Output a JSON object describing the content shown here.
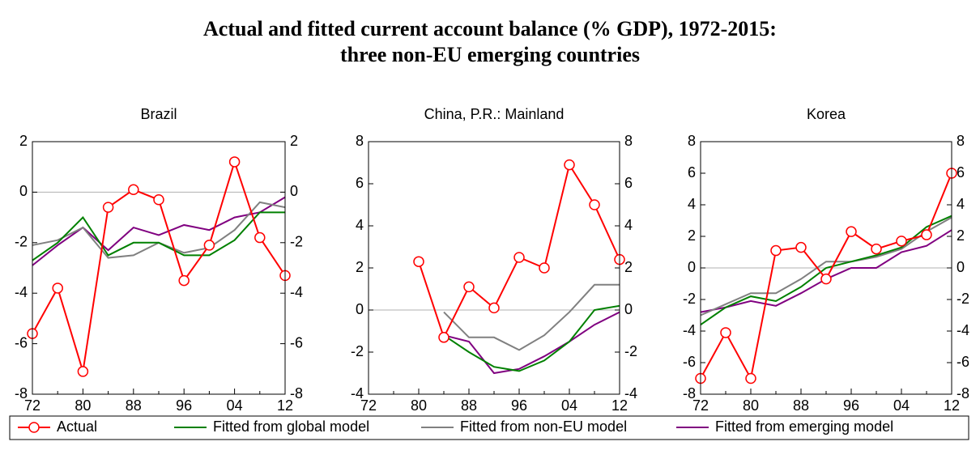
{
  "title": [
    "Actual and fitted current account balance (% GDP), 1972-2015:",
    "three non-EU emerging countries"
  ],
  "chart_data": [
    {
      "type": "line",
      "title": "Brazil",
      "categories": [
        "72",
        null,
        "80",
        null,
        "88",
        null,
        "96",
        null,
        "04",
        null,
        "12"
      ],
      "ylim": [
        -8,
        2
      ],
      "yticks": [
        -8,
        -6,
        -4,
        -2,
        0,
        2
      ],
      "right_axis": true,
      "series": [
        {
          "name": "Actual",
          "color": "#ff0000",
          "marker": "open-circle",
          "values": [
            -5.6,
            -3.8,
            -7.1,
            -0.6,
            0.1,
            -0.3,
            -3.5,
            -2.1,
            1.2,
            -1.8,
            -3.3
          ]
        },
        {
          "name": "Fitted from global model",
          "color": "#008000",
          "values": [
            -2.7,
            -2.0,
            -1.0,
            -2.5,
            -2.0,
            -2.0,
            -2.5,
            -2.5,
            -1.9,
            -0.8,
            -0.8
          ]
        },
        {
          "name": "Fitted from non-EU model",
          "color": "#808080",
          "values": [
            -2.1,
            -1.9,
            -1.4,
            -2.6,
            -2.5,
            -2.0,
            -2.4,
            -2.2,
            -1.5,
            -0.4,
            -0.6
          ]
        },
        {
          "name": "Fitted from emerging model",
          "color": "#800080",
          "values": [
            -2.9,
            -2.1,
            -1.4,
            -2.3,
            -1.4,
            -1.7,
            -1.3,
            -1.5,
            -1.0,
            -0.8,
            -0.2
          ]
        }
      ]
    },
    {
      "type": "line",
      "title": "China, P.R.: Mainland",
      "categories": [
        "72",
        null,
        "80",
        null,
        "88",
        null,
        "96",
        null,
        "04",
        null,
        "12"
      ],
      "ylim": [
        -4,
        8
      ],
      "yticks": [
        -4,
        -2,
        0,
        2,
        4,
        6,
        8
      ],
      "right_axis": true,
      "series": [
        {
          "name": "Actual",
          "color": "#ff0000",
          "marker": "open-circle",
          "values": [
            null,
            null,
            2.3,
            -1.3,
            1.1,
            0.1,
            2.5,
            2.0,
            6.9,
            5.0,
            2.4
          ]
        },
        {
          "name": "Fitted from global model",
          "color": "#008000",
          "values": [
            null,
            null,
            null,
            -1.2,
            -2.0,
            -2.7,
            -2.9,
            -2.4,
            -1.5,
            0.0,
            0.2
          ]
        },
        {
          "name": "Fitted from non-EU model",
          "color": "#808080",
          "values": [
            null,
            null,
            null,
            -0.1,
            -1.3,
            -1.3,
            -1.9,
            -1.2,
            -0.1,
            1.2,
            1.2
          ]
        },
        {
          "name": "Fitted from emerging model",
          "color": "#800080",
          "values": [
            null,
            null,
            null,
            -1.2,
            -1.5,
            -3.0,
            -2.8,
            -2.2,
            -1.5,
            -0.7,
            -0.1
          ]
        }
      ]
    },
    {
      "type": "line",
      "title": "Korea",
      "categories": [
        "72",
        null,
        "80",
        null,
        "88",
        null,
        "96",
        null,
        "04",
        null,
        "12"
      ],
      "ylim": [
        -8,
        8
      ],
      "yticks": [
        -8,
        -6,
        -4,
        -2,
        0,
        2,
        4,
        6,
        8
      ],
      "right_axis": true,
      "series": [
        {
          "name": "Actual",
          "color": "#ff0000",
          "marker": "open-circle",
          "values": [
            -7.0,
            -4.1,
            -7.0,
            1.1,
            1.3,
            -0.7,
            2.3,
            1.2,
            1.7,
            2.1,
            6.0
          ]
        },
        {
          "name": "Fitted from global model",
          "color": "#008000",
          "values": [
            -3.6,
            -2.5,
            -1.8,
            -2.1,
            -1.2,
            0.0,
            0.4,
            0.8,
            1.3,
            2.6,
            3.3
          ]
        },
        {
          "name": "Fitted from non-EU model",
          "color": "#808080",
          "values": [
            -3.0,
            -2.3,
            -1.6,
            -1.6,
            -0.7,
            0.4,
            0.4,
            0.7,
            1.2,
            2.3,
            3.2
          ]
        },
        {
          "name": "Fitted from emerging model",
          "color": "#800080",
          "values": [
            -2.8,
            -2.5,
            -2.1,
            -2.4,
            -1.6,
            -0.7,
            0.0,
            0.0,
            1.0,
            1.4,
            2.4
          ]
        }
      ]
    }
  ]
}
